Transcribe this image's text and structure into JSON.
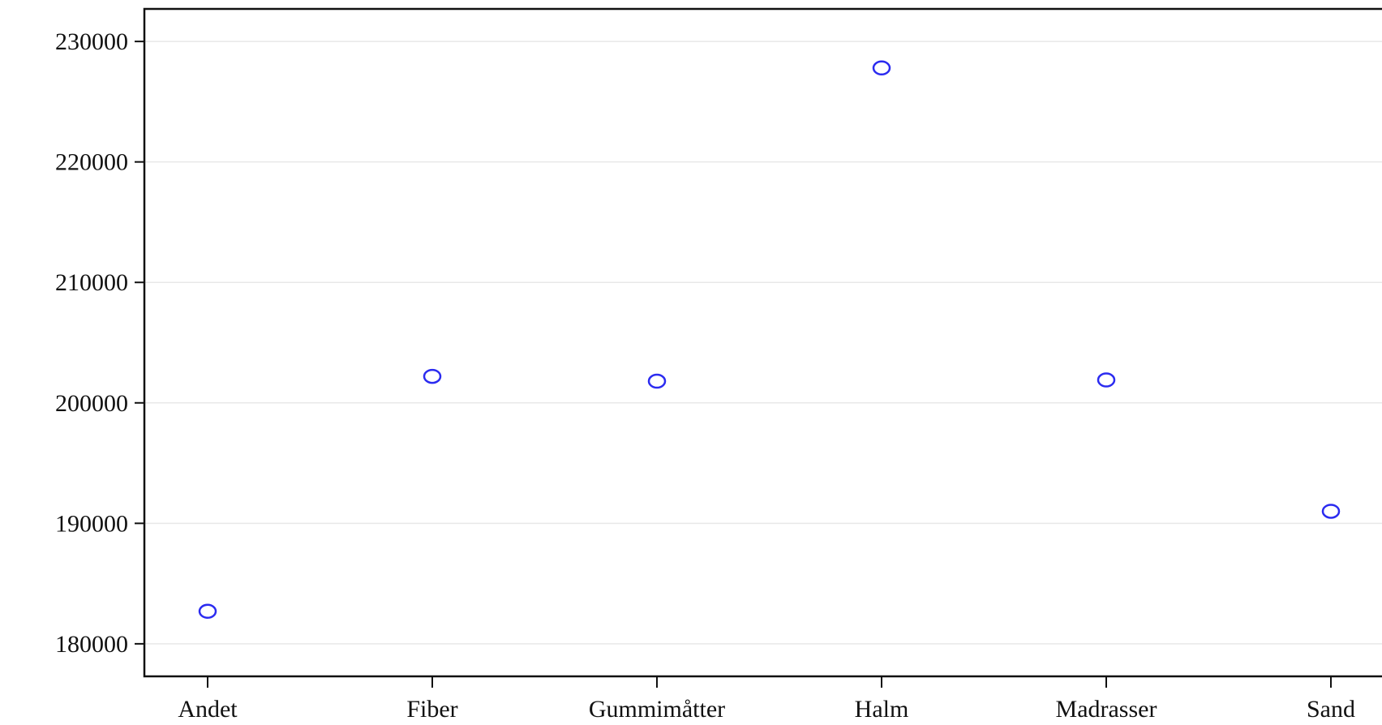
{
  "chart_data": {
    "type": "scatter",
    "categories": [
      "Andet",
      "Fiber",
      "Gummimåtter",
      "Halm",
      "Madrasser",
      "Sand"
    ],
    "values": [
      182700,
      202200,
      201800,
      227800,
      201900,
      191000
    ],
    "title": "",
    "xlabel": "",
    "ylabel": "",
    "ylim": [
      177300,
      232700
    ],
    "yticks": [
      180000,
      190000,
      200000,
      210000,
      220000,
      230000
    ],
    "ytick_labels": [
      "180000",
      "190000",
      "200000",
      "210000",
      "220000",
      "230000"
    ],
    "grid": true,
    "marker": "hollow-circle",
    "colors": {
      "marker": "#2b2bf0",
      "grid": "#e8e8e8",
      "axis": "#111111"
    }
  }
}
